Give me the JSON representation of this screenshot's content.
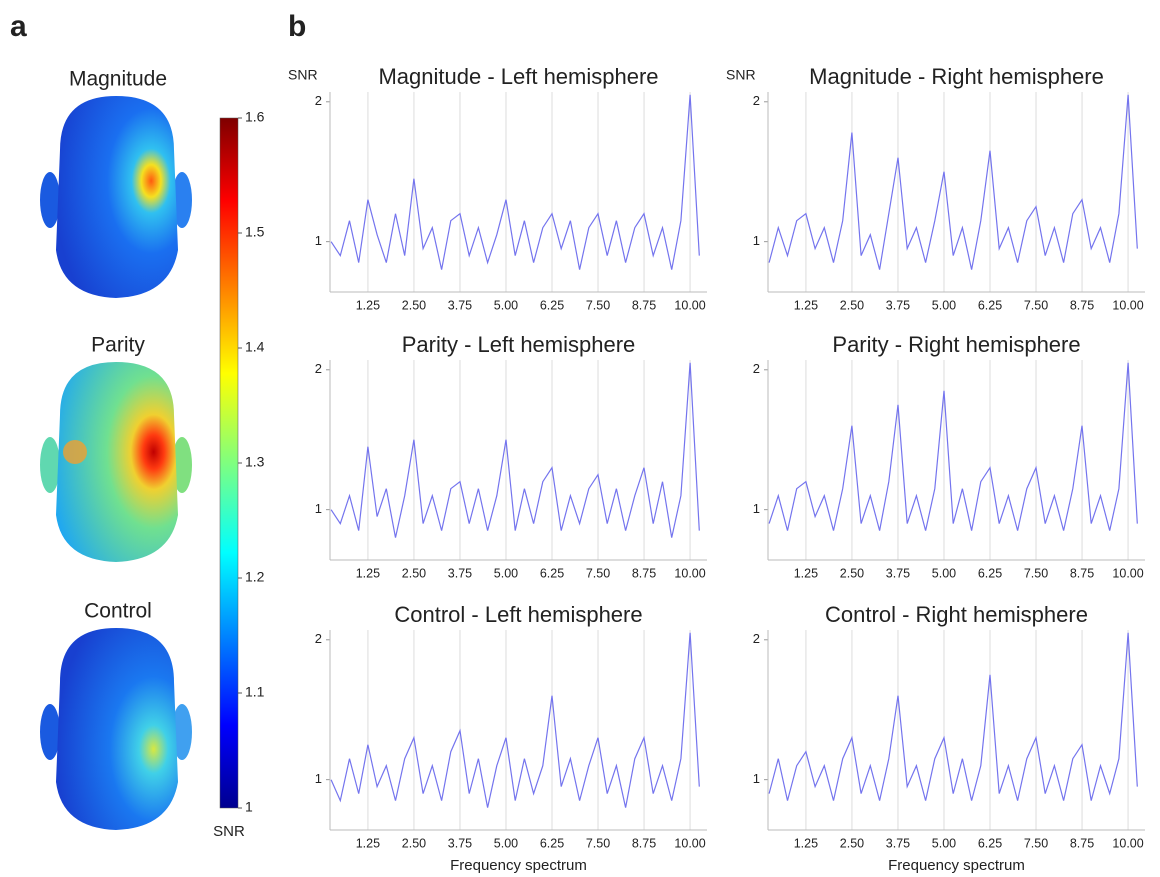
{
  "panels": {
    "a": "a",
    "b": "b"
  },
  "heads": [
    "Magnitude",
    "Parity",
    "Control"
  ],
  "colorbar": {
    "label": "SNR",
    "lim": [
      1,
      1.6
    ],
    "ticks": [
      1,
      1.1,
      1.2,
      1.3,
      1.4,
      1.5,
      1.6
    ]
  },
  "chart_data": [
    {
      "type": "line",
      "title": "Magnitude - Left hemisphere",
      "ylabel": "SNR",
      "color": "#7474ee",
      "grid": "x",
      "xlim": [
        0.22,
        10.46
      ],
      "ylim": [
        0.64,
        2.07
      ],
      "xticks": [
        1.25,
        {
          "value": 2.5,
          "label": "2.50"
        },
        3.75,
        {
          "value": 5,
          "label": "5.00"
        },
        6.25,
        {
          "value": 7.5,
          "label": "7.50"
        },
        8.75,
        {
          "value": 10,
          "label": "10.00"
        }
      ],
      "yticks": [
        1,
        2
      ],
      "x": [
        0.25,
        0.5,
        0.75,
        1,
        1.25,
        1.5,
        1.75,
        2,
        2.25,
        2.5,
        2.75,
        3,
        3.25,
        3.5,
        3.75,
        4,
        4.25,
        4.5,
        4.75,
        5,
        5.25,
        5.5,
        5.75,
        6,
        6.25,
        6.5,
        6.75,
        7,
        7.25,
        7.5,
        7.75,
        8,
        8.25,
        8.5,
        8.75,
        9,
        9.25,
        9.5,
        9.75,
        10,
        10.25
      ],
      "values": [
        1.0,
        0.9,
        1.15,
        0.85,
        1.3,
        1.05,
        0.85,
        1.2,
        0.9,
        1.45,
        0.95,
        1.1,
        0.8,
        1.15,
        1.2,
        0.9,
        1.1,
        0.85,
        1.05,
        1.3,
        0.9,
        1.15,
        0.85,
        1.1,
        1.2,
        0.95,
        1.15,
        0.8,
        1.1,
        1.2,
        0.9,
        1.15,
        0.85,
        1.1,
        1.2,
        0.9,
        1.1,
        0.8,
        1.15,
        2.05,
        0.9
      ]
    },
    {
      "type": "line",
      "title": "Magnitude - Right hemisphere",
      "ylabel": "SNR",
      "color": "#7474ee",
      "grid": "x",
      "xlim": [
        0.22,
        10.46
      ],
      "ylim": [
        0.64,
        2.07
      ],
      "xticks": [
        1.25,
        {
          "value": 2.5,
          "label": "2.50"
        },
        3.75,
        {
          "value": 5,
          "label": "5.00"
        },
        6.25,
        {
          "value": 7.5,
          "label": "7.50"
        },
        8.75,
        {
          "value": 10,
          "label": "10.00"
        }
      ],
      "yticks": [
        1,
        2
      ],
      "x": [
        0.25,
        0.5,
        0.75,
        1,
        1.25,
        1.5,
        1.75,
        2,
        2.25,
        2.5,
        2.75,
        3,
        3.25,
        3.5,
        3.75,
        4,
        4.25,
        4.5,
        4.75,
        5,
        5.25,
        5.5,
        5.75,
        6,
        6.25,
        6.5,
        6.75,
        7,
        7.25,
        7.5,
        7.75,
        8,
        8.25,
        8.5,
        8.75,
        9,
        9.25,
        9.5,
        9.75,
        10,
        10.25
      ],
      "values": [
        0.85,
        1.1,
        0.9,
        1.15,
        1.2,
        0.95,
        1.1,
        0.85,
        1.15,
        1.78,
        0.9,
        1.05,
        0.8,
        1.2,
        1.6,
        0.95,
        1.1,
        0.85,
        1.15,
        1.5,
        0.9,
        1.1,
        0.8,
        1.15,
        1.65,
        0.95,
        1.1,
        0.85,
        1.15,
        1.25,
        0.9,
        1.1,
        0.85,
        1.2,
        1.3,
        0.95,
        1.1,
        0.85,
        1.2,
        2.05,
        0.95
      ]
    },
    {
      "type": "line",
      "title": "Parity - Left hemisphere",
      "color": "#7474ee",
      "grid": "x",
      "xlim": [
        0.22,
        10.46
      ],
      "ylim": [
        0.64,
        2.07
      ],
      "xticks": [
        1.25,
        {
          "value": 2.5,
          "label": "2.50"
        },
        3.75,
        {
          "value": 5,
          "label": "5.00"
        },
        6.25,
        {
          "value": 7.5,
          "label": "7.50"
        },
        8.75,
        {
          "value": 10,
          "label": "10.00"
        }
      ],
      "yticks": [
        1,
        2
      ],
      "x": [
        0.25,
        0.5,
        0.75,
        1,
        1.25,
        1.5,
        1.75,
        2,
        2.25,
        2.5,
        2.75,
        3,
        3.25,
        3.5,
        3.75,
        4,
        4.25,
        4.5,
        4.75,
        5,
        5.25,
        5.5,
        5.75,
        6,
        6.25,
        6.5,
        6.75,
        7,
        7.25,
        7.5,
        7.75,
        8,
        8.25,
        8.5,
        8.75,
        9,
        9.25,
        9.5,
        9.75,
        10,
        10.25
      ],
      "values": [
        1.0,
        0.9,
        1.1,
        0.85,
        1.45,
        0.95,
        1.15,
        0.8,
        1.1,
        1.5,
        0.9,
        1.1,
        0.85,
        1.15,
        1.2,
        0.9,
        1.15,
        0.85,
        1.1,
        1.5,
        0.85,
        1.15,
        0.9,
        1.2,
        1.3,
        0.85,
        1.1,
        0.9,
        1.15,
        1.25,
        0.9,
        1.15,
        0.85,
        1.1,
        1.3,
        0.9,
        1.2,
        0.8,
        1.1,
        2.05,
        0.85
      ]
    },
    {
      "type": "line",
      "title": "Parity - Right hemisphere",
      "color": "#7474ee",
      "grid": "x",
      "xlim": [
        0.22,
        10.46
      ],
      "ylim": [
        0.64,
        2.07
      ],
      "xticks": [
        1.25,
        {
          "value": 2.5,
          "label": "2.50"
        },
        3.75,
        {
          "value": 5,
          "label": "5.00"
        },
        6.25,
        {
          "value": 7.5,
          "label": "7.50"
        },
        8.75,
        {
          "value": 10,
          "label": "10.00"
        }
      ],
      "yticks": [
        1,
        2
      ],
      "x": [
        0.25,
        0.5,
        0.75,
        1,
        1.25,
        1.5,
        1.75,
        2,
        2.25,
        2.5,
        2.75,
        3,
        3.25,
        3.5,
        3.75,
        4,
        4.25,
        4.5,
        4.75,
        5,
        5.25,
        5.5,
        5.75,
        6,
        6.25,
        6.5,
        6.75,
        7,
        7.25,
        7.5,
        7.75,
        8,
        8.25,
        8.5,
        8.75,
        9,
        9.25,
        9.5,
        9.75,
        10,
        10.25
      ],
      "values": [
        0.9,
        1.1,
        0.85,
        1.15,
        1.2,
        0.95,
        1.1,
        0.85,
        1.15,
        1.6,
        0.9,
        1.1,
        0.85,
        1.2,
        1.75,
        0.9,
        1.1,
        0.85,
        1.15,
        1.85,
        0.9,
        1.15,
        0.85,
        1.2,
        1.3,
        0.9,
        1.1,
        0.85,
        1.15,
        1.3,
        0.9,
        1.1,
        0.85,
        1.15,
        1.6,
        0.9,
        1.1,
        0.85,
        1.15,
        2.05,
        0.9
      ]
    },
    {
      "type": "line",
      "title": "Control - Left hemisphere",
      "xlabel": "Frequency spectrum",
      "color": "#7474ee",
      "grid": "x",
      "xlim": [
        0.22,
        10.46
      ],
      "ylim": [
        0.64,
        2.07
      ],
      "xticks": [
        1.25,
        {
          "value": 2.5,
          "label": "2.50"
        },
        3.75,
        {
          "value": 5,
          "label": "5.00"
        },
        6.25,
        {
          "value": 7.5,
          "label": "7.50"
        },
        8.75,
        {
          "value": 10,
          "label": "10.00"
        }
      ],
      "yticks": [
        1,
        2
      ],
      "x": [
        0.25,
        0.5,
        0.75,
        1,
        1.25,
        1.5,
        1.75,
        2,
        2.25,
        2.5,
        2.75,
        3,
        3.25,
        3.5,
        3.75,
        4,
        4.25,
        4.5,
        4.75,
        5,
        5.25,
        5.5,
        5.75,
        6,
        6.25,
        6.5,
        6.75,
        7,
        7.25,
        7.5,
        7.75,
        8,
        8.25,
        8.5,
        8.75,
        9,
        9.25,
        9.5,
        9.75,
        10,
        10.25
      ],
      "values": [
        1.0,
        0.85,
        1.15,
        0.9,
        1.25,
        0.95,
        1.1,
        0.85,
        1.15,
        1.3,
        0.9,
        1.1,
        0.85,
        1.2,
        1.35,
        0.9,
        1.15,
        0.8,
        1.1,
        1.3,
        0.85,
        1.15,
        0.9,
        1.1,
        1.6,
        0.95,
        1.15,
        0.85,
        1.1,
        1.3,
        0.9,
        1.1,
        0.8,
        1.15,
        1.3,
        0.9,
        1.1,
        0.85,
        1.15,
        2.05,
        0.95
      ]
    },
    {
      "type": "line",
      "title": "Control - Right hemisphere",
      "xlabel": "Frequency spectrum",
      "color": "#7474ee",
      "grid": "x",
      "xlim": [
        0.22,
        10.46
      ],
      "ylim": [
        0.64,
        2.07
      ],
      "xticks": [
        1.25,
        {
          "value": 2.5,
          "label": "2.50"
        },
        3.75,
        {
          "value": 5,
          "label": "5.00"
        },
        6.25,
        {
          "value": 7.5,
          "label": "7.50"
        },
        8.75,
        {
          "value": 10,
          "label": "10.00"
        }
      ],
      "yticks": [
        1,
        2
      ],
      "x": [
        0.25,
        0.5,
        0.75,
        1,
        1.25,
        1.5,
        1.75,
        2,
        2.25,
        2.5,
        2.75,
        3,
        3.25,
        3.5,
        3.75,
        4,
        4.25,
        4.5,
        4.75,
        5,
        5.25,
        5.5,
        5.75,
        6,
        6.25,
        6.5,
        6.75,
        7,
        7.25,
        7.5,
        7.75,
        8,
        8.25,
        8.5,
        8.75,
        9,
        9.25,
        9.5,
        9.75,
        10,
        10.25
      ],
      "values": [
        0.9,
        1.15,
        0.85,
        1.1,
        1.2,
        0.95,
        1.1,
        0.85,
        1.15,
        1.3,
        0.9,
        1.1,
        0.85,
        1.15,
        1.6,
        0.95,
        1.1,
        0.85,
        1.15,
        1.3,
        0.9,
        1.15,
        0.85,
        1.1,
        1.75,
        0.9,
        1.1,
        0.85,
        1.15,
        1.3,
        0.9,
        1.1,
        0.85,
        1.15,
        1.25,
        0.85,
        1.1,
        0.9,
        1.15,
        2.05,
        0.95
      ]
    }
  ]
}
